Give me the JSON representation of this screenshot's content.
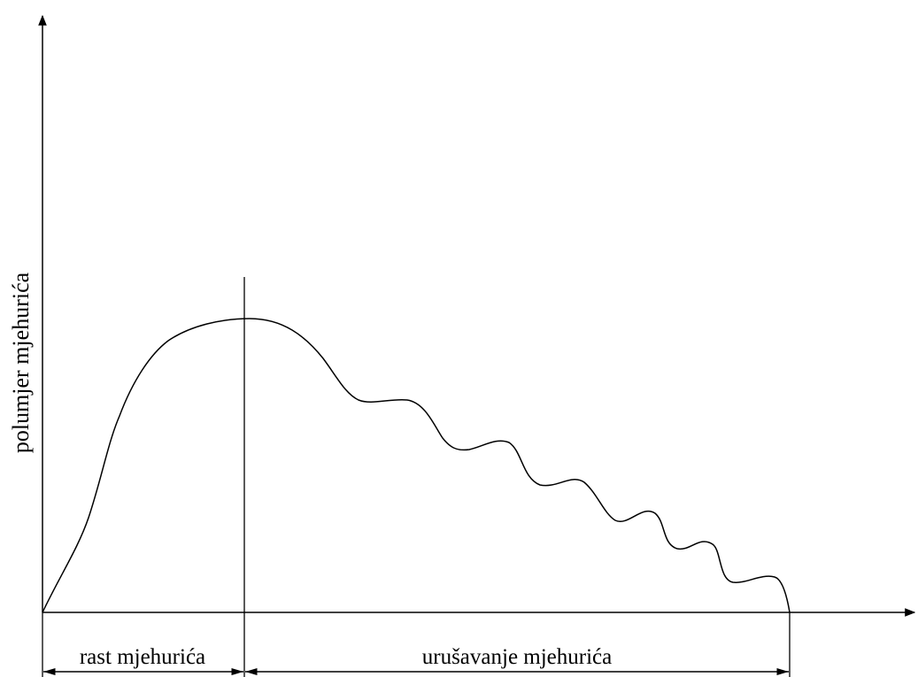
{
  "diagram": {
    "y_axis_label": "polumjer mjehurića",
    "phases": {
      "growth": "rast mjehurića",
      "collapse": "urušavanje mjehurića"
    },
    "colors": {
      "line": "#000000",
      "background": "#ffffff"
    }
  }
}
